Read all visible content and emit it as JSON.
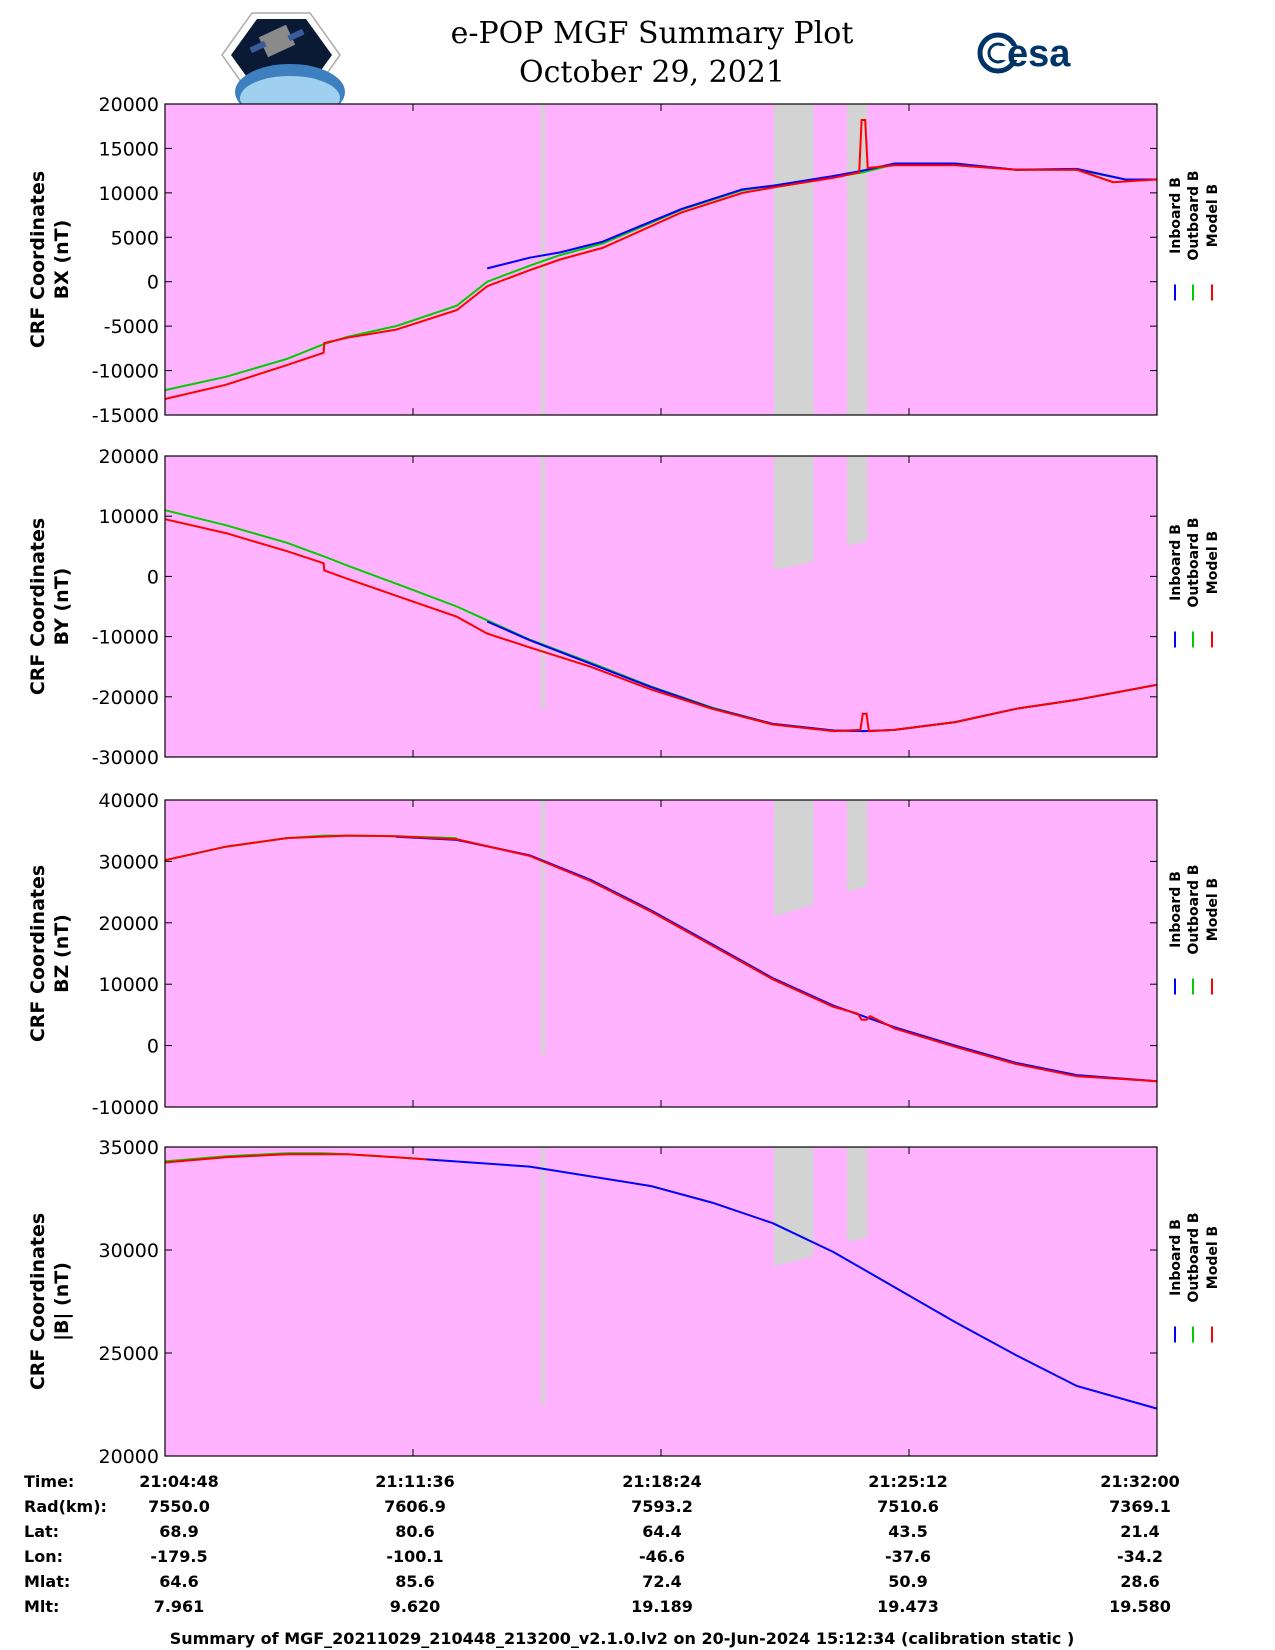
{
  "header": {
    "title_line1": "e-POP MGF Summary Plot",
    "title_line2": "October 29, 2021",
    "left_logo": "cassiope-mission-logo",
    "right_logo": "esa"
  },
  "colors": {
    "panel_bg": "#ffb3ff",
    "gap_fill": "#d3d3d3",
    "inboard": "#0000ff",
    "outboard": "#00cc00",
    "model": "#ff0000"
  },
  "legend": [
    "Inboard B",
    "Outboard B",
    "Model B"
  ],
  "chart_data": [
    {
      "type": "line",
      "ylabel_line1": "CRF Coordinates",
      "ylabel_line2": "BX (nT)",
      "ylim": [
        -15000,
        20000
      ],
      "yticks": [
        "20000",
        "15000",
        "10000",
        "5000",
        "0",
        "-5000",
        "-10000",
        "-15000"
      ],
      "ytick_values": [
        20000,
        15000,
        10000,
        5000,
        0,
        -5000,
        -10000,
        -15000
      ],
      "xlim": [
        0,
        1632
      ],
      "gaps": [
        [
          622,
          622,
          20000,
          -15000,
          -15000
        ],
        [
          1002,
          1067,
          20000,
          -15000,
          -15000
        ],
        [
          1122,
          1155,
          20000,
          -15000,
          -15000
        ]
      ],
      "series": [
        {
          "name": "Outboard B",
          "x": [
            0,
            100,
            200,
            262,
            300,
            380,
            480,
            530,
            600,
            650,
            720,
            850,
            950,
            1000,
            1100,
            1148,
            1200,
            1300,
            1400,
            1500,
            1580,
            1632
          ],
          "values": [
            -12200,
            -10700,
            -8700,
            -7000,
            -6200,
            -5000,
            -2700,
            0,
            1800,
            3000,
            4300,
            8100,
            10300,
            10800,
            11800,
            12300,
            13200,
            13200,
            12600,
            12600,
            11500,
            11500
          ]
        },
        {
          "name": "Inboard B",
          "x": [
            530,
            600,
            650,
            720,
            850,
            950,
            1000,
            1100,
            1148,
            1200,
            1300,
            1400,
            1500,
            1580,
            1632
          ],
          "values": [
            1500,
            2700,
            3300,
            4500,
            8200,
            10400,
            10800,
            11900,
            12500,
            13300,
            13300,
            12600,
            12700,
            11500,
            11500
          ]
        },
        {
          "name": "Model B",
          "x": [
            0,
            100,
            200,
            261,
            262,
            300,
            380,
            480,
            530,
            600,
            650,
            720,
            850,
            950,
            1000,
            1100,
            1142,
            1146,
            1152,
            1156,
            1200,
            1300,
            1400,
            1500,
            1560,
            1632
          ],
          "values": [
            -13200,
            -11600,
            -9400,
            -8000,
            -6900,
            -6300,
            -5400,
            -3200,
            -500,
            1300,
            2500,
            3800,
            7800,
            10000,
            10600,
            11700,
            12300,
            18200,
            18200,
            12800,
            13100,
            13100,
            12600,
            12600,
            11200,
            11500
          ]
        }
      ]
    },
    {
      "type": "line",
      "ylabel_line1": "CRF Coordinates",
      "ylabel_line2": "BY (nT)",
      "ylim": [
        -30000,
        20000
      ],
      "yticks": [
        "20000",
        "10000",
        "0",
        "-10000",
        "-20000",
        "-30000"
      ],
      "ytick_values": [
        20000,
        10000,
        0,
        -10000,
        -20000,
        -30000
      ],
      "xlim": [
        0,
        1632
      ],
      "gaps": [
        [
          622,
          622,
          20000,
          -22000,
          -22000
        ],
        [
          1002,
          1067,
          20000,
          1000,
          2500
        ],
        [
          1122,
          1155,
          20000,
          5000,
          5800
        ]
      ],
      "series": [
        {
          "name": "Outboard B",
          "x": [
            0,
            100,
            200,
            262,
            300,
            380,
            480,
            530,
            600,
            700,
            800,
            900,
            1000,
            1100,
            1150,
            1200,
            1300,
            1400,
            1500,
            1632
          ],
          "values": [
            11000,
            8500,
            5600,
            3300,
            1800,
            -1200,
            -5000,
            -7300,
            -10500,
            -14300,
            -18300,
            -21800,
            -24500,
            -25600,
            -25700,
            -25500,
            -24200,
            -22000,
            -20500,
            -18000
          ]
        },
        {
          "name": "Inboard B",
          "x": [
            530,
            600,
            700,
            800,
            900,
            1000,
            1100,
            1150,
            1200,
            1300,
            1400,
            1500,
            1632
          ],
          "values": [
            -7500,
            -10600,
            -14500,
            -18400,
            -21900,
            -24500,
            -25600,
            -25700,
            -25500,
            -24200,
            -22000,
            -20500,
            -18000
          ]
        },
        {
          "name": "Model B",
          "x": [
            0,
            100,
            200,
            261,
            262,
            300,
            380,
            480,
            530,
            600,
            700,
            800,
            900,
            1000,
            1100,
            1144,
            1148,
            1154,
            1158,
            1200,
            1300,
            1400,
            1500,
            1632
          ],
          "values": [
            9500,
            7200,
            4200,
            2200,
            1000,
            -400,
            -3200,
            -6700,
            -9500,
            -11800,
            -15000,
            -18800,
            -22000,
            -24600,
            -25700,
            -25500,
            -22800,
            -22800,
            -25700,
            -25500,
            -24200,
            -22000,
            -20500,
            -18000
          ]
        }
      ]
    },
    {
      "type": "line",
      "ylabel_line1": "CRF Coordinates",
      "ylabel_line2": "BZ (nT)",
      "ylim": [
        -10000,
        40000
      ],
      "yticks": [
        "40000",
        "30000",
        "20000",
        "10000",
        "0",
        "-10000"
      ],
      "ytick_values": [
        40000,
        30000,
        20000,
        10000,
        0,
        -10000
      ],
      "xlim": [
        0,
        1632
      ],
      "gaps": [
        [
          622,
          622,
          40000,
          -1500,
          -1500
        ],
        [
          1002,
          1067,
          40000,
          21000,
          23000
        ],
        [
          1122,
          1155,
          40000,
          25000,
          26000
        ]
      ],
      "series": [
        {
          "name": "Outboard B",
          "x": [
            0,
            100,
            200,
            262,
            300,
            380,
            480
          ],
          "values": [
            30200,
            32400,
            33800,
            34200,
            34200,
            34100,
            33800
          ]
        },
        {
          "name": "Inboard B",
          "x": [
            380,
            480,
            600,
            700,
            800,
            900,
            1000,
            1100,
            1200,
            1300,
            1400,
            1500,
            1632
          ],
          "values": [
            34000,
            33500,
            31000,
            27000,
            22000,
            16500,
            11000,
            6500,
            3000,
            0,
            -2800,
            -4800,
            -5800
          ]
        },
        {
          "name": "Model B",
          "x": [
            0,
            100,
            200,
            300,
            380,
            480,
            600,
            700,
            800,
            900,
            1000,
            1100,
            1140,
            1146,
            1154,
            1160,
            1200,
            1300,
            1400,
            1500,
            1632
          ],
          "values": [
            30200,
            32400,
            33800,
            34200,
            34100,
            33600,
            30900,
            26800,
            21800,
            16300,
            10800,
            6300,
            5200,
            4200,
            4200,
            4800,
            2800,
            -200,
            -3000,
            -5000,
            -5800
          ]
        }
      ]
    },
    {
      "type": "line",
      "ylabel_line1": "CRF Coordinates",
      "ylabel_line2": "|B| (nT)",
      "ylim": [
        20000,
        35000
      ],
      "yticks": [
        "35000",
        "30000",
        "25000",
        "20000"
      ],
      "ytick_values": [
        35000,
        30000,
        25000,
        20000
      ],
      "xlim": [
        0,
        1632
      ],
      "gaps": [
        [
          622,
          622,
          35000,
          22500,
          22500
        ],
        [
          1002,
          1067,
          35000,
          29200,
          29700
        ],
        [
          1122,
          1155,
          35000,
          30400,
          30600
        ]
      ],
      "series": [
        {
          "name": "Outboard B",
          "x": [
            0,
            100,
            200,
            262,
            300,
            380,
            430
          ],
          "values": [
            34300,
            34550,
            34700,
            34700,
            34650,
            34500,
            34400
          ]
        },
        {
          "name": "Inboard B",
          "x": [
            430,
            600,
            800,
            900,
            1000,
            1100,
            1200,
            1300,
            1400,
            1500,
            1632
          ],
          "values": [
            34400,
            34050,
            33100,
            32300,
            31300,
            29900,
            28200,
            26500,
            24900,
            23400,
            22300
          ]
        },
        {
          "name": "Model B",
          "x": [
            0,
            100,
            200,
            300,
            380,
            430
          ],
          "values": [
            34250,
            34500,
            34650,
            34650,
            34500,
            34400
          ]
        }
      ]
    }
  ],
  "ephemeris": {
    "row_labels": [
      "Time:",
      "Rad(km):",
      "Lat:",
      "Lon:",
      "Mlat:",
      "Mlt:"
    ],
    "columns": [
      [
        "21:04:48",
        "7550.0",
        "68.9",
        "-179.5",
        "64.6",
        "7.961"
      ],
      [
        "21:11:36",
        "7606.9",
        "80.6",
        "-100.1",
        "85.6",
        "9.620"
      ],
      [
        "21:18:24",
        "7593.2",
        "64.4",
        "-46.6",
        "72.4",
        "19.189"
      ],
      [
        "21:25:12",
        "7510.6",
        "43.5",
        "-37.6",
        "50.9",
        "19.473"
      ],
      [
        "21:32:00",
        "7369.1",
        "21.4",
        "-34.2",
        "28.6",
        "19.580"
      ]
    ]
  },
  "footer": "Summary of MGF_20211029_210448_213200_v2.1.0.lv2 on 20-Jun-2024 15:12:34 (calibration static )"
}
